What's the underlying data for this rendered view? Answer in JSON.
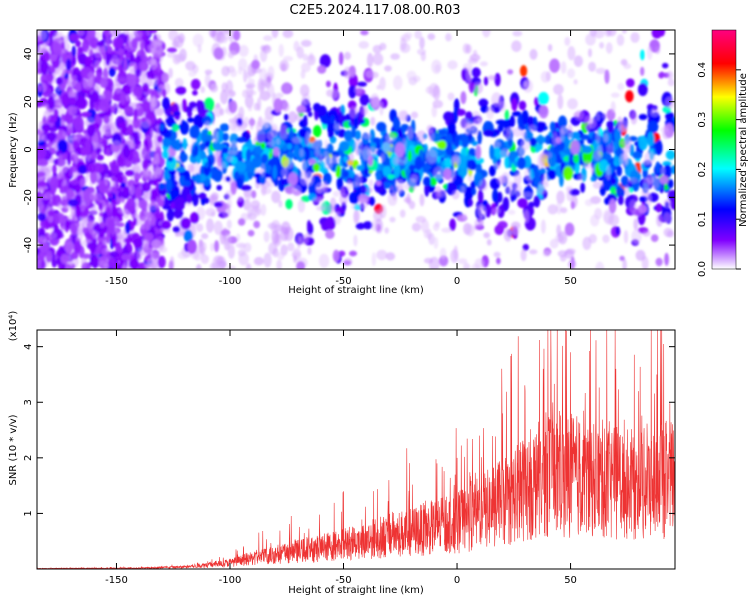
{
  "title": "C2E5.2024.117.08.00.R03",
  "chart_data": [
    {
      "type": "heatmap",
      "xlabel": "Height of straight line (km)",
      "ylabel": "Frequency (Hz)",
      "xlim": [
        -185,
        96
      ],
      "ylim": [
        -50,
        50
      ],
      "x_ticks": [
        -150,
        -100,
        -50,
        0,
        50
      ],
      "y_ticks": [
        -40,
        -20,
        0,
        20,
        40
      ],
      "colorbar": {
        "label": "Normalized spectral amplitude",
        "range": [
          0,
          0.48
        ],
        "ticks": [
          "0.0",
          "0.1",
          "0.2",
          "0.3",
          "0.4"
        ],
        "tick_values": [
          0,
          0.1,
          0.2,
          0.3,
          0.4
        ],
        "colors": [
          "#ffffff",
          "#8000ff",
          "#0000ff",
          "#00ffff",
          "#00ff00",
          "#ffff00",
          "#ff0000",
          "#ff0080"
        ]
      }
    },
    {
      "type": "line",
      "xlabel": "Height of straight line (km)",
      "ylabel": "SNR (10 * v/v)",
      "y_multiplier": "(x10⁴)",
      "xlim": [
        -185,
        96
      ],
      "ylim": [
        0,
        4.3
      ],
      "x_ticks": [
        -150,
        -100,
        -50,
        0,
        50
      ],
      "y_ticks": [
        1,
        2,
        3,
        4
      ],
      "color": "#ee3333",
      "envelope": {
        "x": [
          -185,
          -140,
          -120,
          -100,
          -80,
          -60,
          -40,
          -20,
          0,
          20,
          40,
          60,
          80,
          96
        ],
        "y": [
          0.01,
          0.02,
          0.05,
          0.15,
          0.35,
          0.5,
          0.7,
          0.9,
          1.1,
          1.6,
          2.3,
          2.2,
          2.0,
          2.2
        ]
      },
      "peaks": {
        "x": [
          -50,
          -30,
          0,
          10,
          20,
          30,
          38,
          40,
          50,
          70,
          80,
          88,
          90
        ],
        "y": [
          1.4,
          1.6,
          2.0,
          2.4,
          2.8,
          3.2,
          3.6,
          4.3,
          3.9,
          3.6,
          3.2,
          3.5,
          2.6
        ]
      }
    }
  ]
}
